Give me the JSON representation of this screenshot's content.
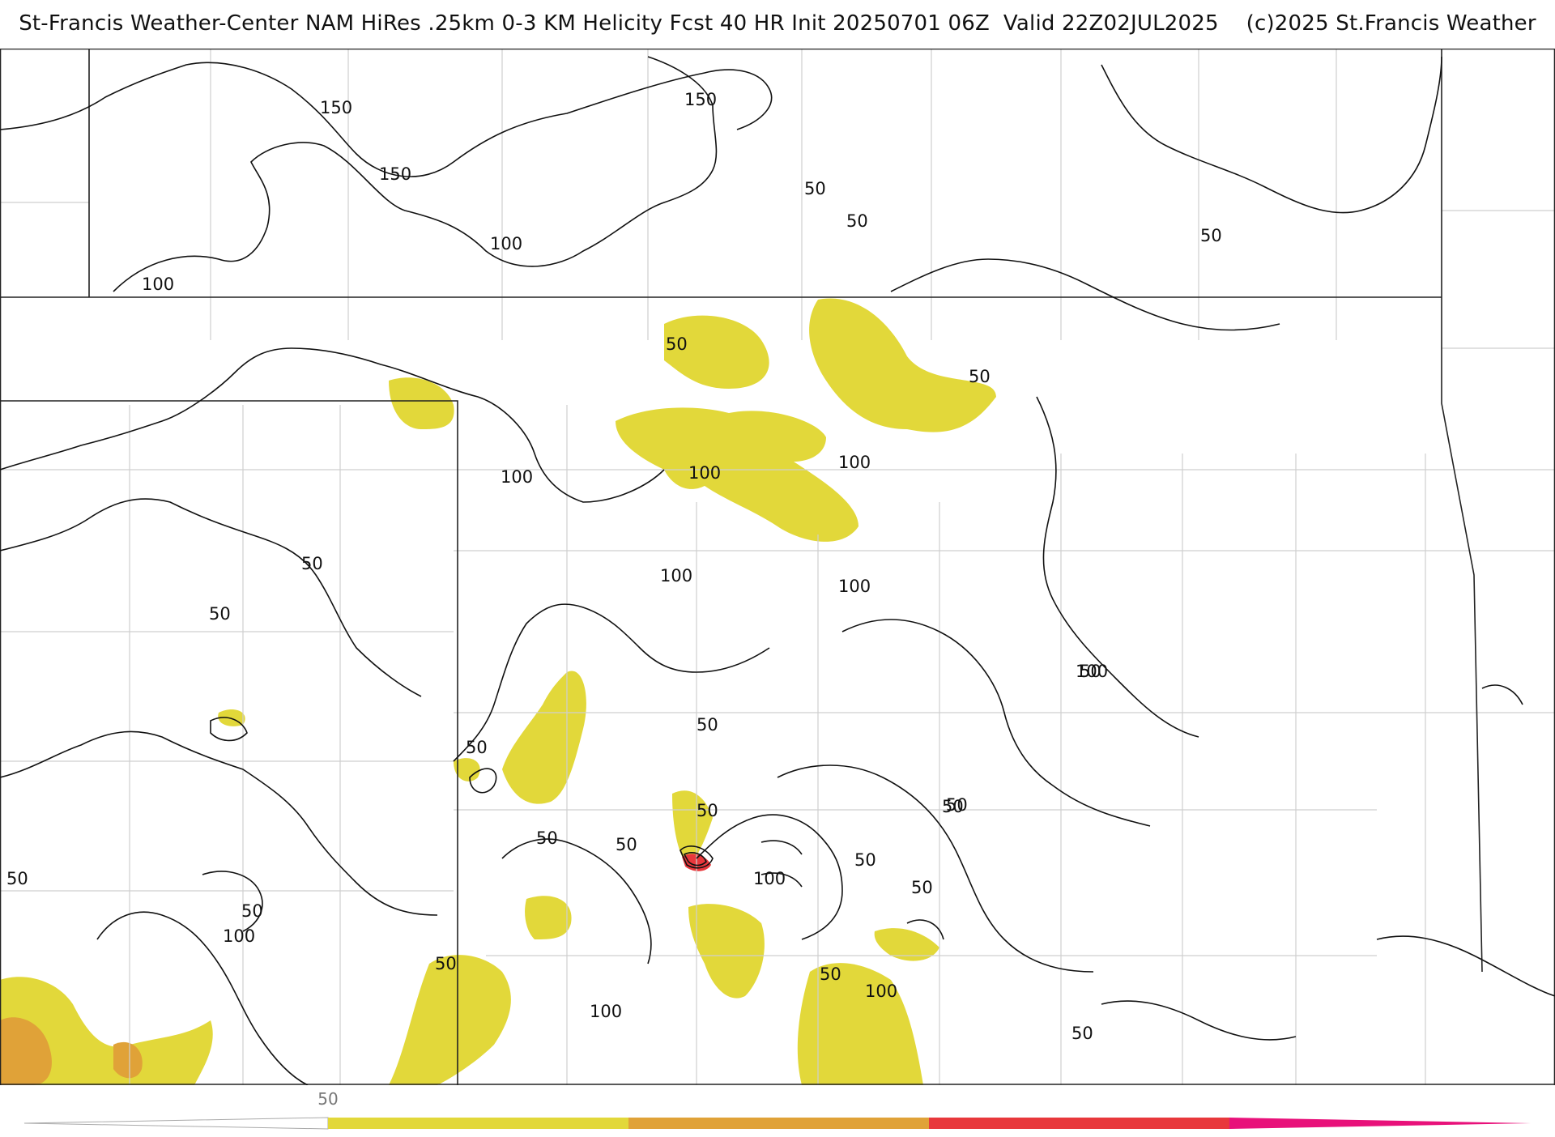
{
  "header": {
    "title": "St-Francis Weather-Center NAM HiRes .25km 0-3 KM Helicity Fcst 40 HR Init 20250701 06Z  Valid 22Z02JUL2025    (c)2025 St.Francis Weather"
  },
  "map": {
    "field": "0-3 KM Helicity",
    "contour_labels": [
      "150",
      "150",
      "150",
      "100",
      "100",
      "50",
      "50",
      "50",
      "50",
      "50",
      "100",
      "100",
      "100",
      "100",
      "50",
      "50",
      "100",
      "100",
      "50",
      "50",
      "50",
      "50",
      "50",
      "50",
      "50",
      "50",
      "50",
      "50",
      "100",
      "50",
      "100",
      "50",
      "100",
      "50",
      "100",
      "50",
      "50"
    ],
    "fill_colors": {
      "yellow": "#e2d83a",
      "orange": "#e0a238",
      "red": "#e8383c",
      "pink": "#e8117a"
    }
  },
  "colorbar": {
    "label": "50",
    "segments": [
      "#e2d83a",
      "#e0a238",
      "#e8383c",
      "#e8117a"
    ]
  }
}
